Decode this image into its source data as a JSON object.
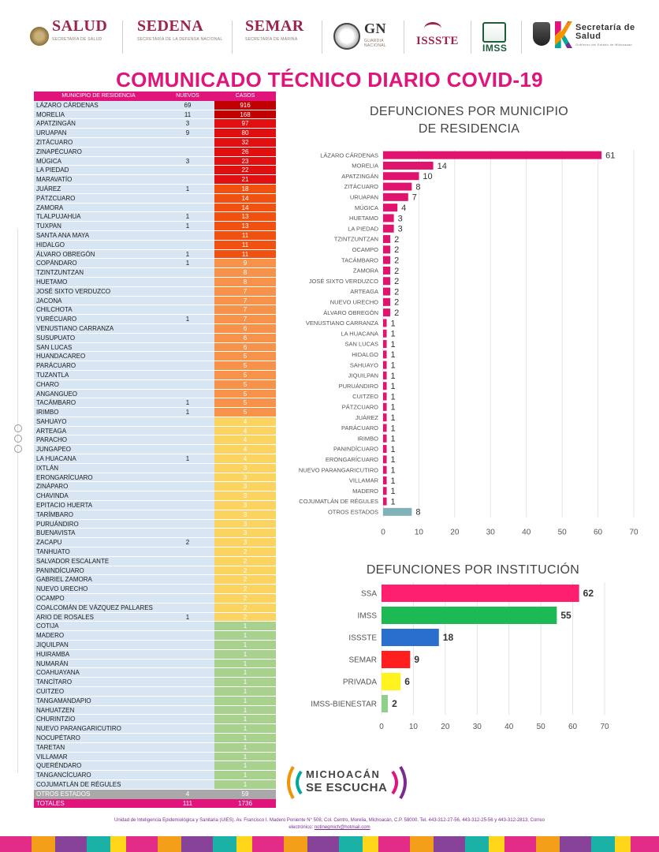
{
  "header": {
    "logos": [
      {
        "name": "SALUD",
        "subtitle": "SECRETARÍA DE SALUD",
        "color": "#9d2449"
      },
      {
        "name": "SEDENA",
        "subtitle": "SECRETARÍA DE LA DEFENSA NACIONAL",
        "color": "#9d2449"
      },
      {
        "name": "SEMAR",
        "subtitle": "SECRETARÍA DE MARINA",
        "color": "#9d2449"
      },
      {
        "name": "GN",
        "subtitle": "GUARDIA NACIONAL",
        "color": "#333333"
      },
      {
        "name": "ISSSTE",
        "subtitle": "",
        "color": "#9d2449"
      },
      {
        "name": "IMSS",
        "subtitle": "",
        "color": "#1f5c3a"
      },
      {
        "name": "Secretaría de Salud",
        "subtitle": "Gobierno del Estado de Michoacán",
        "color": "#333333"
      }
    ]
  },
  "title": "COMUNICADO TÉCNICO DIARIO COVID-19",
  "table": {
    "headers": {
      "municipio": "MUNICIPIO DE RESIDENCIA",
      "nuevos": "NUEVOS",
      "casos": "CASOS"
    },
    "rows": [
      {
        "m": "LÁZARO CÁRDENAS",
        "n": "69",
        "c": "916",
        "color": "#c00000"
      },
      {
        "m": "MORELIA",
        "n": "11",
        "c": "168",
        "color": "#c00000"
      },
      {
        "m": "APATZINGÁN",
        "n": "3",
        "c": "97",
        "color": "#e01010"
      },
      {
        "m": "URUAPAN",
        "n": "9",
        "c": "80",
        "color": "#e01010"
      },
      {
        "m": "ZITÁCUARO",
        "n": "",
        "c": "32",
        "color": "#e01010"
      },
      {
        "m": "ZINAPÉCUARO",
        "n": "",
        "c": "26",
        "color": "#e01010"
      },
      {
        "m": "MÚGICA",
        "n": "3",
        "c": "23",
        "color": "#e01010"
      },
      {
        "m": "LA PIEDAD",
        "n": "",
        "c": "22",
        "color": "#e01010"
      },
      {
        "m": "MARAVATÍO",
        "n": "",
        "c": "21",
        "color": "#e01010"
      },
      {
        "m": "JUÁREZ",
        "n": "1",
        "c": "18",
        "color": "#f05010"
      },
      {
        "m": "PÁTZCUARO",
        "n": "",
        "c": "14",
        "color": "#f05010"
      },
      {
        "m": "ZAMORA",
        "n": "",
        "c": "14",
        "color": "#f05010"
      },
      {
        "m": "TLALPUJAHUA",
        "n": "1",
        "c": "13",
        "color": "#f05010"
      },
      {
        "m": "TUXPAN",
        "n": "1",
        "c": "13",
        "color": "#f05010"
      },
      {
        "m": "SANTA ANA MAYA",
        "n": "",
        "c": "11",
        "color": "#f05010"
      },
      {
        "m": "HIDALGO",
        "n": "",
        "c": "11",
        "color": "#f05010"
      },
      {
        "m": "ÁLVARO OBREGÓN",
        "n": "1",
        "c": "11",
        "color": "#f05010"
      },
      {
        "m": "COPÁNDARO",
        "n": "1",
        "c": "9",
        "color": "#f7924a"
      },
      {
        "m": "TZINTZUNTZAN",
        "n": "",
        "c": "8",
        "color": "#f7924a"
      },
      {
        "m": "HUETAMO",
        "n": "",
        "c": "8",
        "color": "#f7924a"
      },
      {
        "m": "JOSÉ SIXTO VERDUZCO",
        "n": "",
        "c": "7",
        "color": "#f7924a"
      },
      {
        "m": "JACONA",
        "n": "",
        "c": "7",
        "color": "#f7924a"
      },
      {
        "m": "CHILCHOTA",
        "n": "",
        "c": "7",
        "color": "#f7924a"
      },
      {
        "m": "YURÉCUARO",
        "n": "1",
        "c": "7",
        "color": "#f7924a"
      },
      {
        "m": "VENUSTIANO CARRANZA",
        "n": "",
        "c": "6",
        "color": "#f7924a"
      },
      {
        "m": "SUSUPUATO",
        "n": "",
        "c": "6",
        "color": "#f7924a"
      },
      {
        "m": "SAN LUCAS",
        "n": "",
        "c": "6",
        "color": "#f7924a"
      },
      {
        "m": "HUANDACAREO",
        "n": "",
        "c": "5",
        "color": "#f7924a"
      },
      {
        "m": "PARÁCUARO",
        "n": "",
        "c": "5",
        "color": "#f7924a"
      },
      {
        "m": "TUZANTLA",
        "n": "",
        "c": "5",
        "color": "#f7924a"
      },
      {
        "m": "CHARO",
        "n": "",
        "c": "5",
        "color": "#f7924a"
      },
      {
        "m": "ANGANGUEO",
        "n": "",
        "c": "5",
        "color": "#f7924a"
      },
      {
        "m": "TACÁMBARO",
        "n": "1",
        "c": "5",
        "color": "#f7924a"
      },
      {
        "m": "IRIMBO",
        "n": "1",
        "c": "5",
        "color": "#f7924a"
      },
      {
        "m": "SAHUAYO",
        "n": "",
        "c": "4",
        "color": "#fbd360"
      },
      {
        "m": "ARTEAGA",
        "n": "",
        "c": "4",
        "color": "#fbd360"
      },
      {
        "m": "PARACHO",
        "n": "",
        "c": "4",
        "color": "#fbd360"
      },
      {
        "m": "JUNGAPEO",
        "n": "",
        "c": "4",
        "color": "#fbd360"
      },
      {
        "m": "LA HUACANA",
        "n": "1",
        "c": "4",
        "color": "#fbd360"
      },
      {
        "m": "IXTLÁN",
        "n": "",
        "c": "3",
        "color": "#fbd360"
      },
      {
        "m": "ERONGARÍCUARO",
        "n": "",
        "c": "3",
        "color": "#fbd360"
      },
      {
        "m": "ZINÁPARO",
        "n": "",
        "c": "3",
        "color": "#fbd360"
      },
      {
        "m": "CHAVINDA",
        "n": "",
        "c": "3",
        "color": "#fbd360"
      },
      {
        "m": "EPITACIO HUERTA",
        "n": "",
        "c": "3",
        "color": "#fbd360"
      },
      {
        "m": "TARÍMBARO",
        "n": "",
        "c": "3",
        "color": "#fbd360"
      },
      {
        "m": "PURUÁNDIRO",
        "n": "",
        "c": "3",
        "color": "#fbd360"
      },
      {
        "m": "BUENAVISTA",
        "n": "",
        "c": "3",
        "color": "#fbd360"
      },
      {
        "m": "ZACAPU",
        "n": "2",
        "c": "3",
        "color": "#fbd360"
      },
      {
        "m": "TANHUATO",
        "n": "",
        "c": "2",
        "color": "#fbd360"
      },
      {
        "m": "SALVADOR ESCALANTE",
        "n": "",
        "c": "2",
        "color": "#fbd360"
      },
      {
        "m": "PANINDÍCUARO",
        "n": "",
        "c": "2",
        "color": "#fbd360"
      },
      {
        "m": "GABRIEL ZAMORA",
        "n": "",
        "c": "2",
        "color": "#fbd360"
      },
      {
        "m": "NUEVO URECHO",
        "n": "",
        "c": "2",
        "color": "#fbd360"
      },
      {
        "m": "OCAMPO",
        "n": "",
        "c": "2",
        "color": "#fbd360"
      },
      {
        "m": "COALCOMÁN DE VÁZQUEZ PALLARES",
        "n": "",
        "c": "2",
        "color": "#fbd360"
      },
      {
        "m": "ARIO DE ROSALES",
        "n": "1",
        "c": "2",
        "color": "#fbd360"
      },
      {
        "m": "COTIJA",
        "n": "",
        "c": "1",
        "color": "#a9d18e"
      },
      {
        "m": "MADERO",
        "n": "",
        "c": "1",
        "color": "#a9d18e"
      },
      {
        "m": "JIQUILPAN",
        "n": "",
        "c": "1",
        "color": "#a9d18e"
      },
      {
        "m": "HUIRAMBA",
        "n": "",
        "c": "1",
        "color": "#a9d18e"
      },
      {
        "m": "NUMARÁN",
        "n": "",
        "c": "1",
        "color": "#a9d18e"
      },
      {
        "m": "COAHUAYANA",
        "n": "",
        "c": "1",
        "color": "#a9d18e"
      },
      {
        "m": "TANCÍTARO",
        "n": "",
        "c": "1",
        "color": "#a9d18e"
      },
      {
        "m": "CUITZEO",
        "n": "",
        "c": "1",
        "color": "#a9d18e"
      },
      {
        "m": "TANGAMANDAPIO",
        "n": "",
        "c": "1",
        "color": "#a9d18e"
      },
      {
        "m": "NAHUATZEN",
        "n": "",
        "c": "1",
        "color": "#a9d18e"
      },
      {
        "m": "CHURINTZIO",
        "n": "",
        "c": "1",
        "color": "#a9d18e"
      },
      {
        "m": "NUEVO PARANGARICUTIRO",
        "n": "",
        "c": "1",
        "color": "#a9d18e"
      },
      {
        "m": "NOCUPÉTARO",
        "n": "",
        "c": "1",
        "color": "#a9d18e"
      },
      {
        "m": "TARETAN",
        "n": "",
        "c": "1",
        "color": "#a9d18e"
      },
      {
        "m": "VILLAMAR",
        "n": "",
        "c": "1",
        "color": "#a9d18e"
      },
      {
        "m": "QUERÉNDARO",
        "n": "",
        "c": "1",
        "color": "#a9d18e"
      },
      {
        "m": "TANGANCÍCUARO",
        "n": "",
        "c": "1",
        "color": "#a9d18e"
      },
      {
        "m": "COJUMATLÁN DE RÉGULES",
        "n": "",
        "c": "1",
        "color": "#a9d18e"
      }
    ],
    "otros": {
      "m": "OTROS ESTADOS",
      "n": "4",
      "c": "59"
    },
    "totales": {
      "m": "TOTALES",
      "n": "111",
      "c": "1736"
    }
  },
  "chart_data": [
    {
      "type": "bar",
      "orientation": "horizontal",
      "title": "DEFUNCIONES POR MUNICIPIO DE RESIDENCIA",
      "title_lines": [
        "DEFUNCIONES POR MUNICIPIO",
        "DE RESIDENCIA"
      ],
      "categories": [
        "LÁZARO CÁRDENAS",
        "MORELIA",
        "APATZINGÁN",
        "ZITÁCUARO",
        "URUAPAN",
        "MÚGICA",
        "HUETAMO",
        "LA PIEDAD",
        "TZINTZUNTZAN",
        "OCAMPO",
        "TACÁMBARO",
        "ZAMORA",
        "JOSÉ SIXTO VERDUZCO",
        "ARTEAGA",
        "NUEVO URECHO",
        "ÁLVARO OBREGÓN",
        "VENUSTIANO CARRANZA",
        "LA HUACANA",
        "SAN LUCAS",
        "HIDALGO",
        "SAHUAYO",
        "JIQUILPAN",
        "PURUÁNDIRO",
        "CUITZEO",
        "PÁTZCUARO",
        "JUÁREZ",
        "PARÁCUARO",
        "IRIMBO",
        "PANINDÍCUARO",
        "ERONGARÍCUARO",
        "NUEVO PARANGARICUTIRO",
        "VILLAMAR",
        "MADERO",
        "COJUMATLÁN DE RÉGULES",
        "OTROS ESTADOS"
      ],
      "values": [
        61,
        14,
        10,
        8,
        7,
        4,
        3,
        3,
        2,
        2,
        2,
        2,
        2,
        2,
        2,
        2,
        1,
        1,
        1,
        1,
        1,
        1,
        1,
        1,
        1,
        1,
        1,
        1,
        1,
        1,
        1,
        1,
        1,
        1,
        8
      ],
      "colors": [
        "#e0146e",
        "#e0146e",
        "#e0146e",
        "#e0146e",
        "#e0146e",
        "#e0146e",
        "#e0146e",
        "#e0146e",
        "#e0146e",
        "#e0146e",
        "#e0146e",
        "#e0146e",
        "#e0146e",
        "#e0146e",
        "#e0146e",
        "#e0146e",
        "#e0146e",
        "#e0146e",
        "#e0146e",
        "#e0146e",
        "#e0146e",
        "#e0146e",
        "#e0146e",
        "#e0146e",
        "#e0146e",
        "#e0146e",
        "#e0146e",
        "#e0146e",
        "#e0146e",
        "#e0146e",
        "#e0146e",
        "#e0146e",
        "#e0146e",
        "#e0146e",
        "#7fb3b8"
      ],
      "xlim": [
        0,
        70
      ],
      "xticks": [
        0,
        10,
        20,
        30,
        40,
        50,
        60,
        70
      ],
      "grid": true
    },
    {
      "type": "bar",
      "orientation": "horizontal",
      "title": "DEFUNCIONES POR INSTITUCIÓN",
      "categories": [
        "SSA",
        "IMSS",
        "ISSSTE",
        "SEMAR",
        "PRIVADA",
        "IMSS-BIENESTAR"
      ],
      "values": [
        62,
        55,
        18,
        9,
        6,
        2
      ],
      "colors": [
        "#ff1f6e",
        "#1db954",
        "#2a6fce",
        "#ff1f1f",
        "#fff21f",
        "#8fd18a"
      ],
      "xlim": [
        0,
        70
      ],
      "xticks": [
        0,
        10,
        20,
        30,
        40,
        50,
        60,
        70
      ],
      "grid": true
    }
  ],
  "bottom_logo": {
    "line1": "MICHOACÁN",
    "line2": "SE ESCUCHA"
  },
  "footer": {
    "line1": "Unidad de Inteligencia Epidemiológica y Sanitaria (UIES). Av. Francisco I. Madero Poniente N° 508, Col. Centro, Morelia, Michoacán, C.P. 58000. Tel. 443-312-27-56, 443-312-25-56 y 443-312-2813, Correo",
    "line2_label": "electrónico: ",
    "email": "notinegmich@hotmail.com"
  }
}
